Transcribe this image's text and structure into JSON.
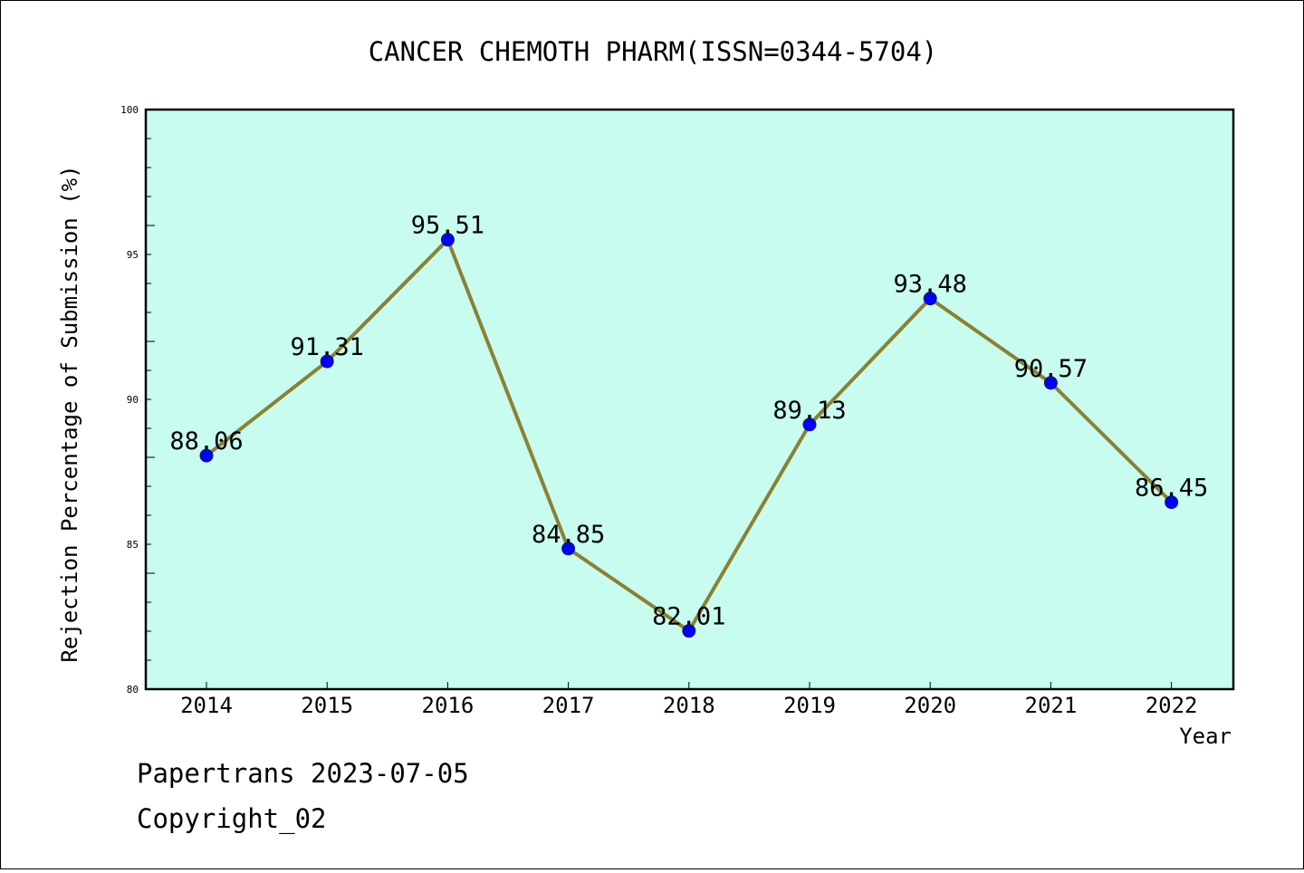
{
  "chart_data": {
    "type": "line",
    "title": "CANCER CHEMOTH PHARM(ISSN=0344-5704)",
    "xlabel": "Year",
    "ylabel": "Rejection Percentage of Submission (%)",
    "categories": [
      "2014",
      "2015",
      "2016",
      "2017",
      "2018",
      "2019",
      "2020",
      "2021",
      "2022"
    ],
    "values": [
      88.06,
      91.31,
      95.51,
      84.85,
      82.01,
      89.13,
      93.48,
      90.57,
      86.45
    ],
    "data_labels": [
      "88.06",
      "91.31",
      "95.51",
      "84.85",
      "82.01",
      "89.13",
      "93.48",
      "90.57",
      "86.45"
    ],
    "ylim": [
      80,
      100
    ],
    "yticks": [
      "80",
      "85",
      "90",
      "95",
      "100"
    ],
    "grid": false,
    "legend": "none",
    "colors": {
      "plot_background": "#c8fcee",
      "line": "#8b8133",
      "marker": "#0000ff"
    }
  },
  "footer": {
    "line1": "Papertrans 2023-07-05",
    "line2": "Copyright_02"
  }
}
